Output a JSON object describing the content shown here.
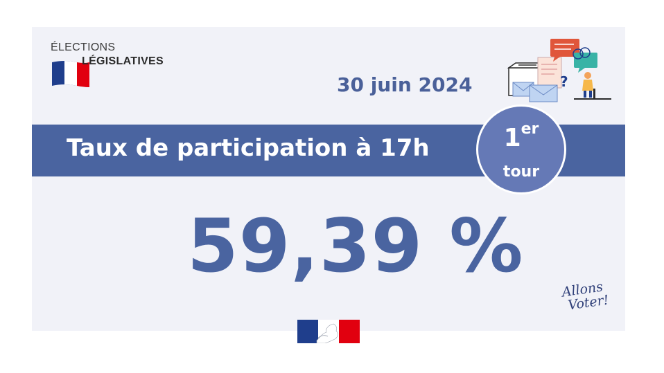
{
  "logo": {
    "line1": "ÉLECTIONS",
    "line2": "LÉGISLATIVES"
  },
  "date": "30 juin 2024",
  "band": {
    "title": "Taux de participation à 17h"
  },
  "tour": {
    "number": "1",
    "superscript": "er",
    "label": "tour"
  },
  "participation": "59,39 %",
  "slogan": {
    "line1": "Allons",
    "line2": "Voter!"
  },
  "colors": {
    "primary": "#4a64a0",
    "circle": "#6579b6",
    "background": "#f1f2f8",
    "flag_blue": "#1f3e8c",
    "flag_red": "#e1000f"
  },
  "icons": [
    "french-flag-icon",
    "ballot-box-illustration-icon",
    "republique-francaise-logo-icon"
  ]
}
